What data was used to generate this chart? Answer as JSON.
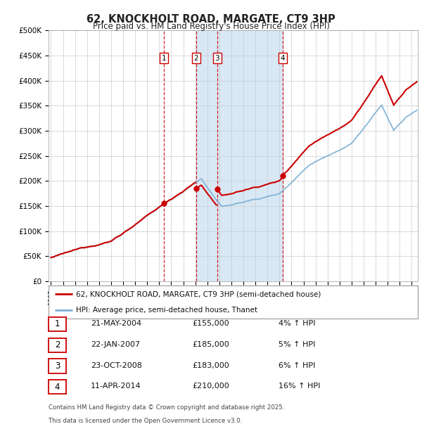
{
  "title": "62, KNOCKHOLT ROAD, MARGATE, CT9 3HP",
  "subtitle": "Price paid vs. HM Land Registry's House Price Index (HPI)",
  "ylim": [
    0,
    500000
  ],
  "yticks": [
    0,
    50000,
    100000,
    150000,
    200000,
    250000,
    300000,
    350000,
    400000,
    450000,
    500000
  ],
  "ytick_labels": [
    "£0",
    "£50K",
    "£100K",
    "£150K",
    "£200K",
    "£250K",
    "£300K",
    "£350K",
    "£400K",
    "£450K",
    "£500K"
  ],
  "bg_color": "#ffffff",
  "grid_color": "#cccccc",
  "purchases": [
    {
      "label": "1",
      "date": "21-MAY-2004",
      "date_num": 2004.38,
      "price": 155000,
      "hpi_pct": "4%"
    },
    {
      "label": "2",
      "date": "22-JAN-2007",
      "date_num": 2007.06,
      "price": 185000,
      "hpi_pct": "5%"
    },
    {
      "label": "3",
      "date": "23-OCT-2008",
      "date_num": 2008.81,
      "price": 183000,
      "hpi_pct": "6%"
    },
    {
      "label": "4",
      "date": "11-APR-2014",
      "date_num": 2014.28,
      "price": 210000,
      "hpi_pct": "16%"
    }
  ],
  "legend_line1": "62, KNOCKHOLT ROAD, MARGATE, CT9 3HP (semi-detached house)",
  "legend_line2": "HPI: Average price, semi-detached house, Thanet",
  "table_rows": [
    {
      "num": "1",
      "date": "21-MAY-2004",
      "price": "£155,000",
      "hpi": "4% ↑ HPI"
    },
    {
      "num": "2",
      "date": "22-JAN-2007",
      "price": "£185,000",
      "hpi": "5% ↑ HPI"
    },
    {
      "num": "3",
      "date": "23-OCT-2008",
      "price": "£183,000",
      "hpi": "6% ↑ HPI"
    },
    {
      "num": "4",
      "date": "11-APR-2014",
      "price": "£210,000",
      "hpi": "16% ↑ HPI"
    }
  ],
  "footer_line1": "Contains HM Land Registry data © Crown copyright and database right 2025.",
  "footer_line2": "This data is licensed under the Open Government Licence v3.0.",
  "price_line_color": "#cc0000",
  "hpi_line_color": "#7aafd4",
  "shade_color": "#d8e8f5",
  "vline_color": "#cc0000",
  "box_color": "#cc0000",
  "xlim_start": 1994.8,
  "xlim_end": 2025.5,
  "shade_start": 2007.06,
  "shade_end": 2014.28
}
